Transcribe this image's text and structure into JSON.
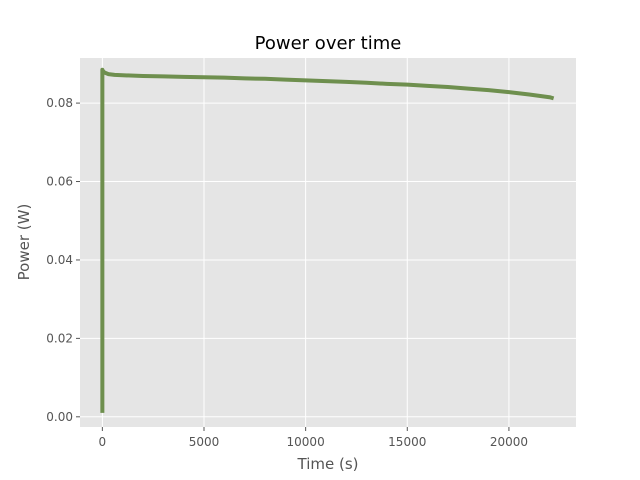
{
  "chart_data": {
    "type": "line",
    "title": "Power over time",
    "xlabel": "Time (s)",
    "ylabel": "Power (W)",
    "xlim": [
      -1100,
      23300
    ],
    "ylim": [
      -0.0026,
      0.0915
    ],
    "xticks": [
      0,
      5000,
      10000,
      15000,
      20000
    ],
    "xtick_labels": [
      "0",
      "5000",
      "10000",
      "15000",
      "20000"
    ],
    "yticks": [
      0.0,
      0.02,
      0.04,
      0.06,
      0.08
    ],
    "ytick_labels": [
      "0.00",
      "0.02",
      "0.04",
      "0.06",
      "0.08"
    ],
    "grid": true,
    "legend": "none",
    "colors": {
      "background": "#e5e5e5",
      "grid": "#ffffff",
      "line": "#6e8f4e"
    },
    "series": [
      {
        "x": [
          0,
          0,
          0,
          10,
          100,
          300,
          600,
          1000,
          2000,
          3000,
          4000,
          5000,
          6000,
          7000,
          8000,
          9000,
          10000,
          11000,
          12000,
          13000,
          14000,
          15000,
          16000,
          17000,
          18000,
          19000,
          20000,
          21000,
          22000,
          22200
        ],
        "y": [
          0.001,
          0.05,
          0.0885,
          0.0883,
          0.0878,
          0.0874,
          0.0872,
          0.0871,
          0.0869,
          0.0868,
          0.0867,
          0.0866,
          0.0865,
          0.0863,
          0.0862,
          0.086,
          0.0858,
          0.0856,
          0.0854,
          0.0852,
          0.0849,
          0.0847,
          0.0844,
          0.0841,
          0.0837,
          0.0833,
          0.0828,
          0.0822,
          0.0815,
          0.0812
        ]
      }
    ]
  }
}
